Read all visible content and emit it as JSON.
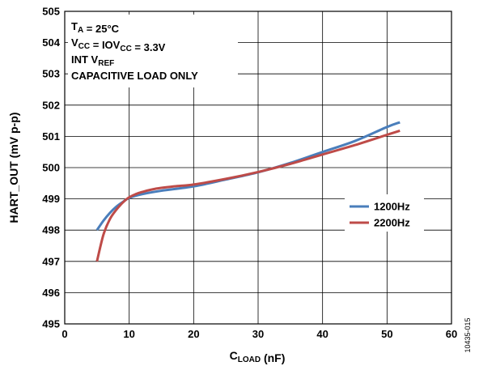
{
  "chart_data": {
    "type": "line",
    "xlabel": {
      "main": "C",
      "sub": "LOAD",
      "rest": " (nF)"
    },
    "ylabel": "HART_OUT (mV p-p)",
    "xlim": [
      0,
      60
    ],
    "ylim": [
      495,
      505
    ],
    "x_ticks": [
      "0",
      "10",
      "20",
      "30",
      "40",
      "50",
      "60"
    ],
    "y_ticks": [
      "495",
      "496",
      "497",
      "498",
      "499",
      "500",
      "501",
      "502",
      "503",
      "504",
      "505"
    ],
    "grid": true,
    "legend_position": "right",
    "annotations": [
      [
        {
          "t": "T"
        },
        {
          "t": "A",
          "sub": true
        },
        {
          "t": " = 25°C"
        }
      ],
      [
        {
          "t": "V"
        },
        {
          "t": "CC",
          "sub": true
        },
        {
          "t": " = IOV"
        },
        {
          "t": "CC",
          "sub": true
        },
        {
          "t": " = 3.3V"
        }
      ],
      [
        {
          "t": "INT V"
        },
        {
          "t": "REF",
          "sub": true
        }
      ],
      [
        {
          "t": "CAPACITIVE LOAD ONLY"
        }
      ]
    ],
    "series": [
      {
        "name": "1200Hz",
        "color": "#4a7ebb",
        "x": [
          5,
          6,
          7,
          8,
          9,
          10,
          12,
          15,
          20,
          25,
          30,
          35,
          40,
          45,
          50,
          52
        ],
        "y": [
          498.0,
          498.3,
          498.55,
          498.75,
          498.9,
          499.03,
          499.15,
          499.26,
          499.4,
          499.62,
          499.85,
          500.15,
          500.5,
          500.85,
          501.3,
          501.45
        ]
      },
      {
        "name": "2200Hz",
        "color": "#be4b48",
        "x": [
          5,
          6,
          7,
          8,
          9,
          10,
          11,
          12,
          14,
          17,
          20,
          25,
          30,
          35,
          40,
          45,
          50,
          52
        ],
        "y": [
          497.0,
          497.85,
          498.35,
          498.65,
          498.88,
          499.05,
          499.15,
          499.22,
          499.32,
          499.4,
          499.46,
          499.64,
          499.86,
          500.12,
          500.42,
          500.72,
          501.05,
          501.18
        ]
      }
    ]
  },
  "figure_id": "10435-015"
}
